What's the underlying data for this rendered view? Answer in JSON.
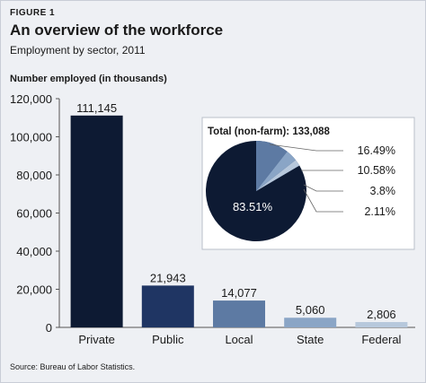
{
  "figure_label": "FIGURE 1",
  "title": "An overview of the workforce",
  "subtitle": "Employment by sector, 2011",
  "ylabel": "Number employed (in thousands)",
  "source": "Source: Bureau of Labor Statistics.",
  "chart_data": [
    {
      "type": "bar",
      "categories": [
        "Private",
        "Public",
        "Local",
        "State",
        "Federal"
      ],
      "values": [
        111145,
        21943,
        14077,
        5060,
        2806
      ],
      "value_labels": [
        "111,145",
        "21,943",
        "14,077",
        "5,060",
        "2,806"
      ],
      "colors": [
        "#0d1a33",
        "#1f3563",
        "#5d7aa3",
        "#8aa5c6",
        "#b7c8dc"
      ],
      "ylim": [
        0,
        120000
      ],
      "yticks": [
        0,
        20000,
        40000,
        60000,
        80000,
        100000,
        120000
      ],
      "ytick_labels": [
        "0",
        "20,000",
        "40,000",
        "60,000",
        "80,000",
        "100,000",
        "120,000"
      ],
      "grid": false
    },
    {
      "type": "pie",
      "title": "Total (non-farm): 133,088",
      "slices": [
        {
          "value": 83.51,
          "label": "83.51%",
          "color": "#0d1a33"
        },
        {
          "value": 16.49,
          "label": "16.49%",
          "color": "#1f3563"
        },
        {
          "value": 10.58,
          "label": "10.58%",
          "color": "#5d7aa3"
        },
        {
          "value": 3.8,
          "label": "3.8%",
          "color": "#8aa5c6"
        },
        {
          "value": 2.11,
          "label": "2.11%",
          "color": "#b7c8dc"
        }
      ]
    }
  ]
}
